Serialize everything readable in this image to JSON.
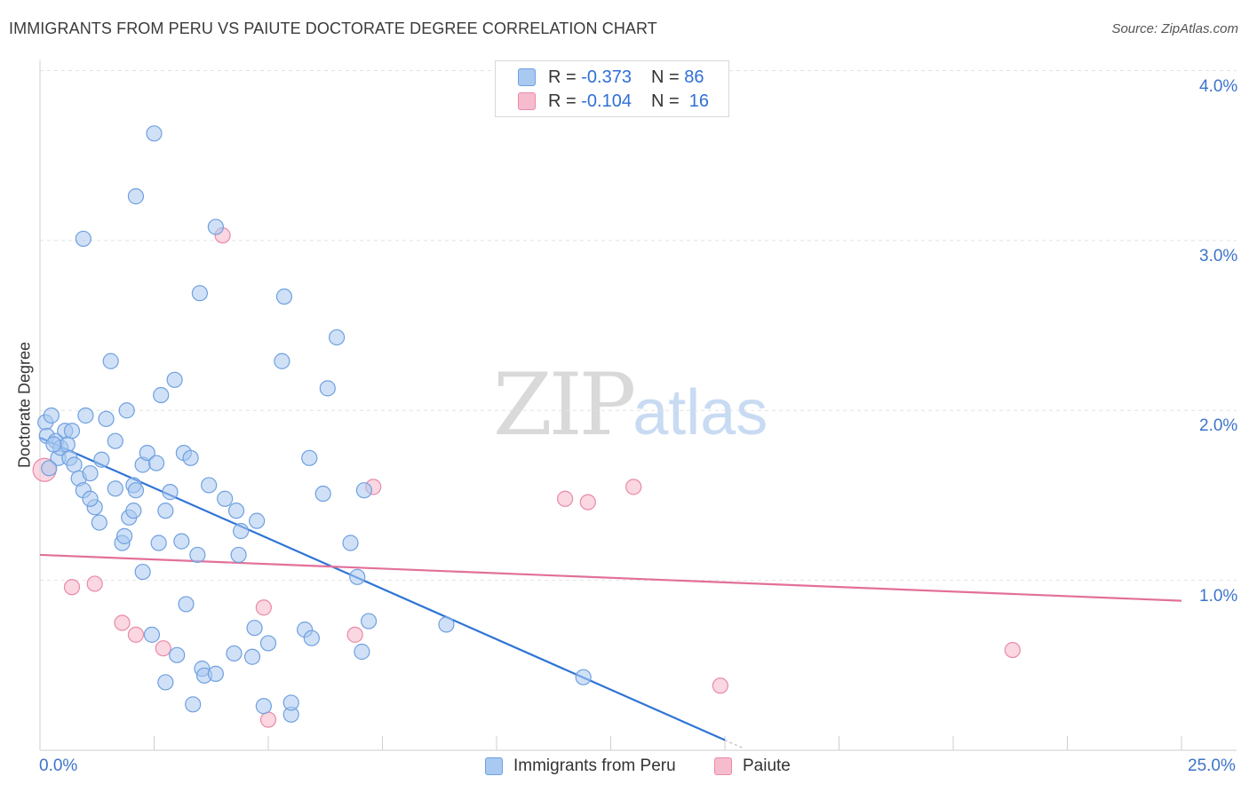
{
  "header": {
    "title": "IMMIGRANTS FROM PERU VS PAIUTE DOCTORATE DEGREE CORRELATION CHART",
    "source": "Source: ZipAtlas.com"
  },
  "watermark": {
    "zip": "ZIP",
    "atlas": "atlas"
  },
  "legend": {
    "rows": [
      {
        "r_label": "R =",
        "r_value": "-0.373",
        "n_label": "N =",
        "n_value": "86"
      },
      {
        "r_label": "R =",
        "r_value": "-0.104",
        "n_label": "N =",
        "n_value": "16"
      }
    ]
  },
  "colors": {
    "peru_fill": "#a9c9f1",
    "peru_stroke": "#6fa0e0",
    "peru_line": "#2f74d6",
    "paiute_fill": "#f6bccd",
    "paiute_stroke": "#e98aa8",
    "paiute_line": "#e2709a",
    "axis_text": "#3d74c9",
    "grid": "#e2e2e2"
  },
  "chart_data": {
    "type": "scatter",
    "title": "IMMIGRANTS FROM PERU VS PAIUTE DOCTORATE DEGREE CORRELATION CHART",
    "xlabel": "",
    "ylabel": "Doctorate Degree",
    "xlim": [
      0,
      25
    ],
    "ylim": [
      0,
      4.2
    ],
    "x_tick_labels": [
      "0.0%",
      "25.0%"
    ],
    "y_ticks": [
      1,
      2,
      3,
      4
    ],
    "y_tick_labels": [
      "1.0%",
      "2.0%",
      "3.0%",
      "4.0%"
    ],
    "series": [
      {
        "name": "Immigrants from Peru",
        "trend": {
          "x": [
            0,
            15
          ],
          "y": [
            1.84,
            0.06
          ]
        },
        "points": [
          [
            0.12,
            1.93
          ],
          [
            0.15,
            1.85
          ],
          [
            0.25,
            1.97
          ],
          [
            0.35,
            1.82
          ],
          [
            0.4,
            1.72
          ],
          [
            0.45,
            1.78
          ],
          [
            0.55,
            1.88
          ],
          [
            0.6,
            1.8
          ],
          [
            0.65,
            1.72
          ],
          [
            0.75,
            1.68
          ],
          [
            0.85,
            1.6
          ],
          [
            0.95,
            1.53
          ],
          [
            1.0,
            1.97
          ],
          [
            1.1,
            1.63
          ],
          [
            1.2,
            1.43
          ],
          [
            1.3,
            1.34
          ],
          [
            1.35,
            1.71
          ],
          [
            1.45,
            1.95
          ],
          [
            1.55,
            2.29
          ],
          [
            1.65,
            1.54
          ],
          [
            1.65,
            1.82
          ],
          [
            1.8,
            1.22
          ],
          [
            1.85,
            1.26
          ],
          [
            1.9,
            2.0
          ],
          [
            1.95,
            1.37
          ],
          [
            2.05,
            1.56
          ],
          [
            2.05,
            1.41
          ],
          [
            2.1,
            1.53
          ],
          [
            2.25,
            1.68
          ],
          [
            2.25,
            1.05
          ],
          [
            2.35,
            1.75
          ],
          [
            2.45,
            0.68
          ],
          [
            2.55,
            1.69
          ],
          [
            2.6,
            1.22
          ],
          [
            2.65,
            2.09
          ],
          [
            2.75,
            1.41
          ],
          [
            2.75,
            0.4
          ],
          [
            2.85,
            1.52
          ],
          [
            2.95,
            2.18
          ],
          [
            3.0,
            0.56
          ],
          [
            3.1,
            1.23
          ],
          [
            3.15,
            1.75
          ],
          [
            3.2,
            0.86
          ],
          [
            3.3,
            1.72
          ],
          [
            3.35,
            0.27
          ],
          [
            3.45,
            1.15
          ],
          [
            3.55,
            0.48
          ],
          [
            3.6,
            0.44
          ],
          [
            3.7,
            1.56
          ],
          [
            3.85,
            0.45
          ],
          [
            4.05,
            1.48
          ],
          [
            4.25,
            0.57
          ],
          [
            4.3,
            1.41
          ],
          [
            4.35,
            1.15
          ],
          [
            4.4,
            1.29
          ],
          [
            4.65,
            0.55
          ],
          [
            4.7,
            0.72
          ],
          [
            4.75,
            1.35
          ],
          [
            4.9,
            0.26
          ],
          [
            5.0,
            0.63
          ],
          [
            5.3,
            2.29
          ],
          [
            5.5,
            0.21
          ],
          [
            5.5,
            0.28
          ],
          [
            5.8,
            0.71
          ],
          [
            5.9,
            1.72
          ],
          [
            5.95,
            0.66
          ],
          [
            6.2,
            1.51
          ],
          [
            6.3,
            2.13
          ],
          [
            6.5,
            2.43
          ],
          [
            6.8,
            1.22
          ],
          [
            6.95,
            1.02
          ],
          [
            7.05,
            0.58
          ],
          [
            7.1,
            1.53
          ],
          [
            7.2,
            0.76
          ],
          [
            8.9,
            0.74
          ],
          [
            11.9,
            0.43
          ],
          [
            2.5,
            3.63
          ],
          [
            2.1,
            3.26
          ],
          [
            0.95,
            3.01
          ],
          [
            3.85,
            3.08
          ],
          [
            3.5,
            2.69
          ],
          [
            5.35,
            2.67
          ],
          [
            0.2,
            1.66
          ],
          [
            0.3,
            1.8
          ],
          [
            0.7,
            1.88
          ],
          [
            1.1,
            1.48
          ]
        ]
      },
      {
        "name": "Paiute",
        "trend": {
          "x": [
            0,
            25
          ],
          "y": [
            1.15,
            0.88
          ]
        },
        "points": [
          [
            0.1,
            1.65
          ],
          [
            0.7,
            0.96
          ],
          [
            1.2,
            0.98
          ],
          [
            1.8,
            0.75
          ],
          [
            2.1,
            0.68
          ],
          [
            2.7,
            0.6
          ],
          [
            4.0,
            3.03
          ],
          [
            4.9,
            0.84
          ],
          [
            5.0,
            0.18
          ],
          [
            6.9,
            0.68
          ],
          [
            7.3,
            1.55
          ],
          [
            11.5,
            1.48
          ],
          [
            12.0,
            1.46
          ],
          [
            13.0,
            1.55
          ],
          [
            14.9,
            0.38
          ],
          [
            21.3,
            0.59
          ]
        ]
      }
    ]
  },
  "bottom_legend": [
    {
      "label": "Immigrants from Peru"
    },
    {
      "label": "Paiute"
    }
  ]
}
